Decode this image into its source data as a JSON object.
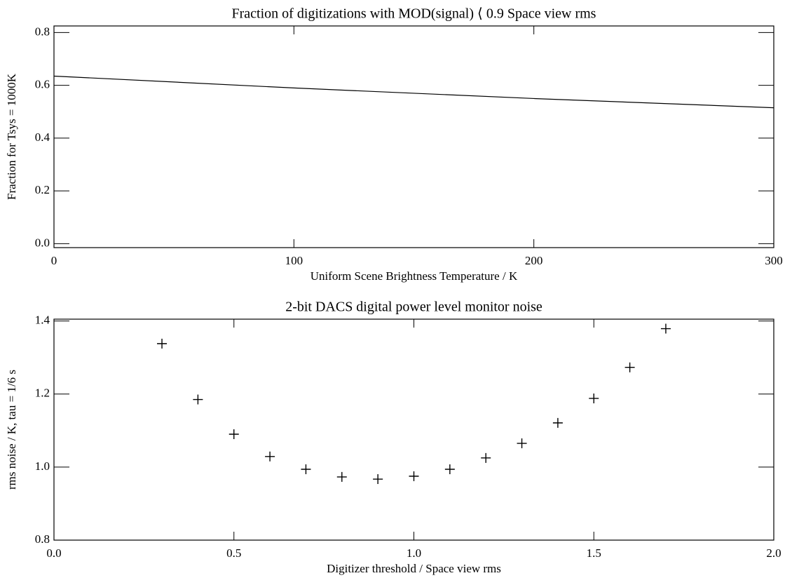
{
  "chart_data": [
    {
      "type": "line",
      "title": "Fraction of digitizations with MOD(signal) ⟨ 0.9 Space view rms",
      "x_label": "Uniform Scene Brightness Temperature / K",
      "y_label": "Fraction for Tsys = 1000K",
      "x": [
        0,
        100,
        200,
        300
      ],
      "values": [
        0.635,
        0.59,
        0.55,
        0.515
      ],
      "color": "#000000",
      "xlim": [
        0,
        300
      ],
      "xticks": [
        0,
        100,
        200,
        300
      ],
      "ylim": [
        -0.015,
        0.825
      ],
      "yticks": [
        {
          "value": 0,
          "label": "0.0"
        },
        0.2,
        0.4,
        0.6,
        0.8
      ]
    },
    {
      "type": "scatter",
      "title": "2-bit DACS digital power level monitor noise",
      "x_label": "Digitizer threshold / Space view rms",
      "y_label": "rms noise / K, tau = 1/6 s",
      "x": [
        0.3,
        0.4,
        0.5,
        0.6,
        0.7,
        0.8,
        0.9,
        1.0,
        1.1,
        1.2,
        1.3,
        1.4,
        1.5,
        1.6,
        1.7
      ],
      "values": [
        1.338,
        1.185,
        1.09,
        1.029,
        0.994,
        0.973,
        0.967,
        0.975,
        0.994,
        1.025,
        1.065,
        1.121,
        1.188,
        1.273,
        1.379
      ],
      "color": "#000000",
      "xlim": [
        0,
        2
      ],
      "xticks": [
        {
          "value": 0,
          "label": "0.0"
        },
        0.5,
        {
          "value": 1,
          "label": "1.0"
        },
        1.5,
        {
          "value": 2,
          "label": "2.0"
        }
      ],
      "ylim": [
        0.8,
        1.405
      ],
      "yticks": [
        0.8,
        {
          "value": 1,
          "label": "1.0"
        },
        1.2,
        1.4
      ]
    }
  ]
}
